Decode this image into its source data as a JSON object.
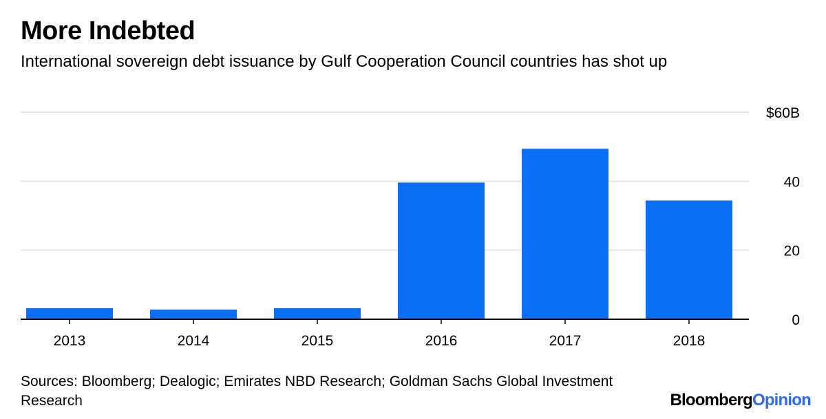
{
  "chart": {
    "title": "More Indebted",
    "subtitle": "International sovereign debt issuance by Gulf Cooperation Council countries has shot up",
    "source": "Sources: Bloomberg; Dealogic; Emirates NBD Research; Goldman Sachs Global Investment Research"
  },
  "brand": {
    "name_part1": "Bloomberg",
    "name_part2": "Opinion"
  },
  "colors": {
    "bar": "#0a6ef7",
    "grid": "#e6e6e6",
    "axis": "#000000",
    "brand_accent": "#2d6bf6"
  },
  "chart_data": {
    "type": "bar",
    "categories": [
      "2013",
      "2014",
      "2015",
      "2016",
      "2017",
      "2018"
    ],
    "values": [
      3.2,
      2.8,
      3.2,
      39.6,
      49.4,
      34.4
    ],
    "ylim": [
      0,
      60
    ],
    "yticks": [
      0,
      20,
      40,
      60
    ],
    "ytick_labels": [
      "0",
      "20",
      "40",
      "$60B"
    ],
    "y_axis_position": "right",
    "grid": true,
    "xlabel": "",
    "ylabel": ""
  }
}
